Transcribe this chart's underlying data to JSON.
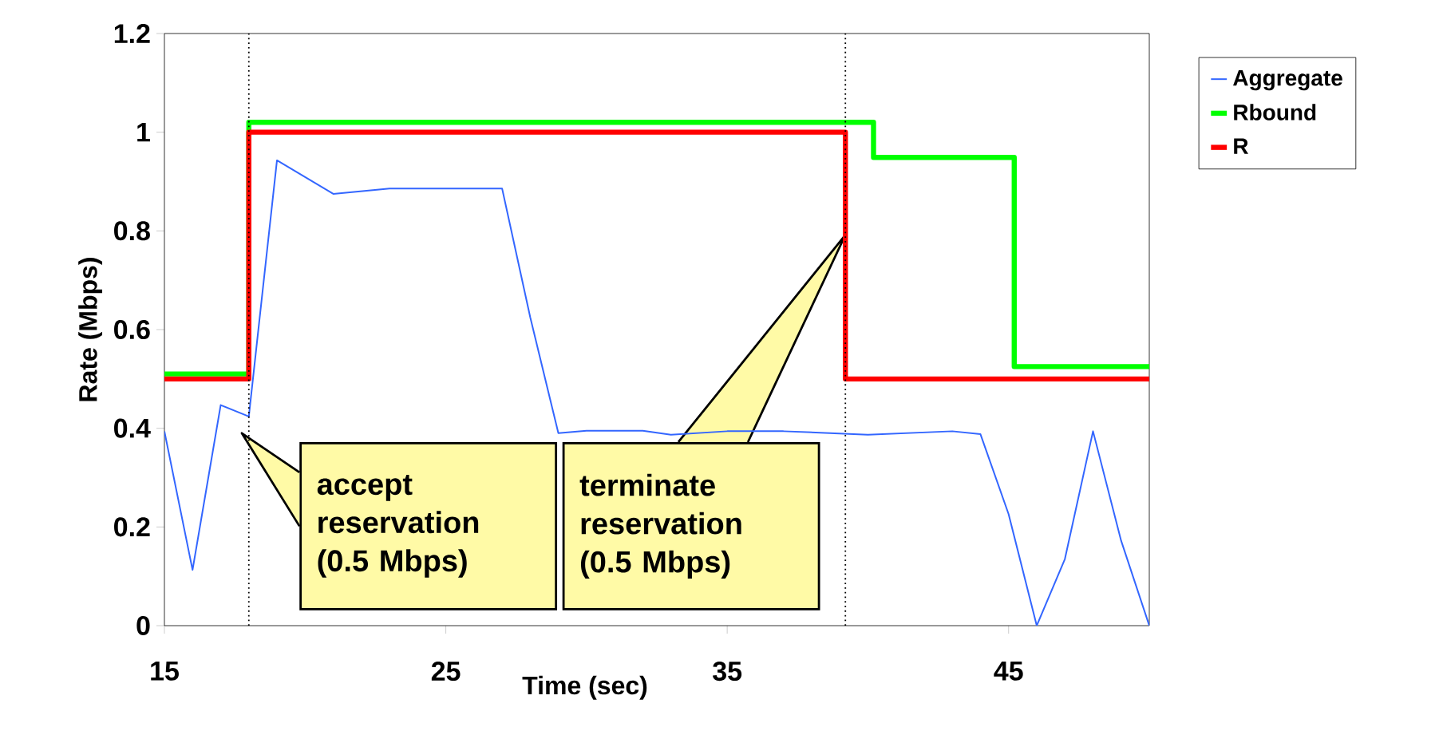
{
  "chart_data": {
    "type": "line",
    "xlabel": "Time (sec)",
    "ylabel": "Rate (Mbps)",
    "xlim": [
      15,
      50
    ],
    "xticks": [
      15,
      25,
      35,
      45
    ],
    "ylim": [
      0,
      1.2
    ],
    "yticks": [
      0,
      0.2,
      0.4,
      0.6,
      0.8,
      1,
      1.2
    ],
    "legend": "top right",
    "marker": "none",
    "grid": false,
    "series": [
      {
        "name": "Aggregate",
        "color": "#3366ff",
        "x": [
          15,
          16,
          17,
          18,
          19,
          21,
          23,
          25,
          27,
          28,
          29,
          30,
          32,
          33,
          35,
          37,
          40,
          43,
          44,
          45,
          46,
          47,
          48,
          49,
          50
        ],
        "values": [
          0.394,
          0.113,
          0.447,
          0.424,
          0.943,
          0.875,
          0.886,
          0.886,
          0.886,
          0.625,
          0.39,
          0.395,
          0.395,
          0.387,
          0.394,
          0.394,
          0.387,
          0.394,
          0.388,
          0.226,
          0,
          0.135,
          0.394,
          0.172,
          0
        ]
      },
      {
        "name": "Rbound",
        "type": "step",
        "color": "#00ff00",
        "x": [
          15,
          18,
          40.2,
          45.2,
          50
        ],
        "values": [
          0.51,
          1.02,
          0.949,
          0.525,
          0.525
        ]
      },
      {
        "name": "R",
        "type": "step",
        "color": "#ff0000",
        "x": [
          15,
          18,
          39.2,
          50
        ],
        "values": [
          0.5,
          1,
          0.5,
          0.5
        ]
      }
    ],
    "ref_lines": [
      {
        "axis": "x",
        "value": 18,
        "color": "#000000",
        "line_style": "dotted"
      },
      {
        "axis": "x",
        "value": 39.2,
        "color": "#000000",
        "line_style": "dotted"
      }
    ],
    "annotations": [
      {
        "text": "accept reservation (0.5 Mbps)",
        "x": 17.75,
        "y": 0.39
      },
      "terminate reservation (0.5 Mbps)"
    ]
  }
}
